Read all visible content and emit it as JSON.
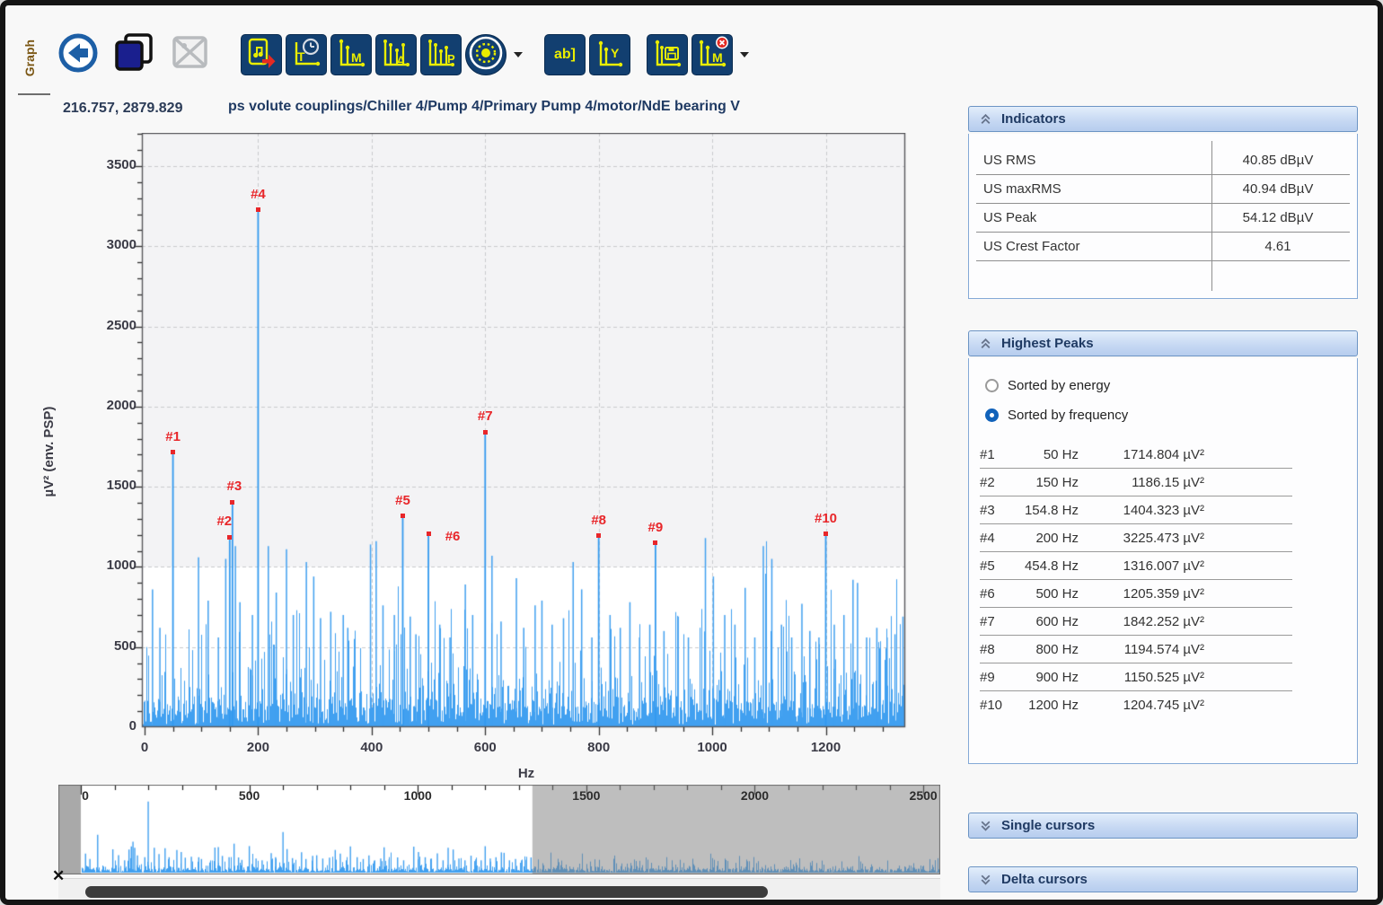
{
  "window": {
    "tab_label": "Graph"
  },
  "icons": {
    "close": "✕"
  },
  "toolbar": {
    "icons": {
      "t": "T",
      "m": "M",
      "delta": "Δ",
      "p": "P",
      "ab": "ab]",
      "y": "Y",
      "m_delete": "M"
    },
    "buttons": [
      "back",
      "copy-image",
      "image-disabled",
      "export-report",
      "time-waveform",
      "marker",
      "delta-markers",
      "peak-markers",
      "machine-settings",
      "annotation",
      "y-axis",
      "save-markers",
      "delete-markers"
    ]
  },
  "titlebar": {
    "cursor_readout": "216.757, 2879.829",
    "title": "ps volute couplings/Chiller 4/Pump 4/Primary Pump 4/motor/NdE bearing V"
  },
  "indicators": {
    "header": "Indicators",
    "rows": [
      {
        "label": "US RMS",
        "value": "40.85 dBµV"
      },
      {
        "label": "US maxRMS",
        "value": "40.94 dBµV"
      },
      {
        "label": "US Peak",
        "value": "54.12 dBµV"
      },
      {
        "label": "US Crest Factor",
        "value": "4.61"
      },
      {
        "label": "",
        "value": ""
      }
    ]
  },
  "highest_peaks": {
    "header": "Highest Peaks",
    "sort_options": [
      {
        "label": "Sorted by energy",
        "selected": false
      },
      {
        "label": "Sorted by frequency",
        "selected": true
      }
    ]
  },
  "single_cursors": {
    "header": "Single cursors"
  },
  "delta_cursors": {
    "header": "Delta cursors"
  },
  "chart_data": {
    "type": "line",
    "subtype": "spectrum",
    "title": "ps volute couplings/Chiller 4/Pump 4/Primary Pump 4/motor/NdE bearing V",
    "xlabel": "Hz",
    "ylabel": "µV² (env. PSP)",
    "x_range": [
      0,
      1340
    ],
    "y_range": [
      0,
      3707
    ],
    "x_tick_labels": [
      0,
      200,
      400,
      600,
      800,
      1000,
      1200
    ],
    "x_minor_step": 50,
    "y_tick_labels": [
      0,
      500,
      1000,
      1500,
      2000,
      2500,
      3000,
      3500
    ],
    "y_minor_step": 100,
    "grid": true,
    "background_split": 1000,
    "noise_seed": 90125,
    "peaks": [
      {
        "id": "#1",
        "freq": 50,
        "value": 1714.804,
        "freq_label": "50 Hz",
        "value_label": "1714.804 µV²",
        "dx": 0,
        "dy": 0
      },
      {
        "id": "#2",
        "freq": 150,
        "value": 1186.15,
        "freq_label": "150 Hz",
        "value_label": "1186.15 µV²",
        "dx": -6,
        "dy": 0
      },
      {
        "id": "#3",
        "freq": 154.8,
        "value": 1404.323,
        "freq_label": "154.8 Hz",
        "value_label": "1404.323 µV²",
        "dx": 2,
        "dy": 0
      },
      {
        "id": "#4",
        "freq": 200,
        "value": 3225.473,
        "freq_label": "200 Hz",
        "value_label": "3225.473 µV²",
        "dx": 0,
        "dy": 0
      },
      {
        "id": "#5",
        "freq": 454.8,
        "value": 1316.007,
        "freq_label": "454.8 Hz",
        "value_label": "1316.007 µV²",
        "dx": 0,
        "dy": 0
      },
      {
        "id": "#6",
        "freq": 500,
        "value": 1205.359,
        "freq_label": "500 Hz",
        "value_label": "1205.359 µV²",
        "dx": 27,
        "dy": 20
      },
      {
        "id": "#7",
        "freq": 600,
        "value": 1842.252,
        "freq_label": "600 Hz",
        "value_label": "1842.252 µV²",
        "dx": 0,
        "dy": 0
      },
      {
        "id": "#8",
        "freq": 800,
        "value": 1194.574,
        "freq_label": "800 Hz",
        "value_label": "1194.574 µV²",
        "dx": 0,
        "dy": 0
      },
      {
        "id": "#9",
        "freq": 900,
        "value": 1150.525,
        "freq_label": "900 Hz",
        "value_label": "1150.525 µV²",
        "dx": 0,
        "dy": 0
      },
      {
        "id": "#10",
        "freq": 1200,
        "value": 1204.745,
        "freq_label": "1200 Hz",
        "value_label": "1204.745 µV²",
        "dx": 0,
        "dy": 0
      }
    ],
    "secondary_peaks": [
      [
        14,
        860
      ],
      [
        27,
        620
      ],
      [
        95,
        1060
      ],
      [
        112,
        790
      ],
      [
        130,
        560
      ],
      [
        143,
        1050
      ],
      [
        160,
        1130
      ],
      [
        168,
        780
      ],
      [
        190,
        700
      ],
      [
        218,
        1130
      ],
      [
        232,
        840
      ],
      [
        250,
        1110
      ],
      [
        262,
        700
      ],
      [
        285,
        1030
      ],
      [
        298,
        940
      ],
      [
        310,
        680
      ],
      [
        328,
        720
      ],
      [
        350,
        700
      ],
      [
        358,
        620
      ],
      [
        398,
        1140
      ],
      [
        408,
        1160
      ],
      [
        420,
        760
      ],
      [
        440,
        700
      ],
      [
        468,
        690
      ],
      [
        478,
        580
      ],
      [
        520,
        640
      ],
      [
        538,
        560
      ],
      [
        565,
        890
      ],
      [
        578,
        700
      ],
      [
        612,
        1070
      ],
      [
        628,
        660
      ],
      [
        655,
        930
      ],
      [
        668,
        620
      ],
      [
        688,
        760
      ],
      [
        700,
        790
      ],
      [
        718,
        640
      ],
      [
        738,
        680
      ],
      [
        755,
        1030
      ],
      [
        770,
        860
      ],
      [
        788,
        560
      ],
      [
        820,
        700
      ],
      [
        838,
        620
      ],
      [
        855,
        780
      ],
      [
        872,
        560
      ],
      [
        890,
        640
      ],
      [
        915,
        600
      ],
      [
        940,
        690
      ],
      [
        958,
        560
      ],
      [
        988,
        1180
      ],
      [
        1002,
        940
      ],
      [
        1022,
        700
      ],
      [
        1040,
        640
      ],
      [
        1058,
        870
      ],
      [
        1075,
        560
      ],
      [
        1090,
        1130
      ],
      [
        1105,
        1050
      ],
      [
        1122,
        640
      ],
      [
        1140,
        560
      ],
      [
        1158,
        770
      ],
      [
        1172,
        600
      ],
      [
        1188,
        560
      ],
      [
        1215,
        640
      ],
      [
        1232,
        700
      ],
      [
        1248,
        920
      ],
      [
        1256,
        900
      ],
      [
        1272,
        560
      ],
      [
        1290,
        620
      ],
      [
        1308,
        560
      ],
      [
        1322,
        580
      ],
      [
        1336,
        690
      ]
    ],
    "navigator": {
      "x_range": [
        0,
        2545
      ],
      "tick_labels": [
        0,
        500,
        1000,
        1500,
        2000,
        2500
      ],
      "minor_step": 100,
      "selection": [
        0,
        1340
      ]
    },
    "colors": {
      "spectrum": "#41a0f0",
      "spectrum_strong": "#339aef",
      "marker": "#e8262a",
      "grid": "#c9cacd",
      "plot_border": "#58585c",
      "band_gray": "#f3f3f5",
      "nav_dim_overlay": "rgba(125,125,125,0.5)"
    }
  }
}
